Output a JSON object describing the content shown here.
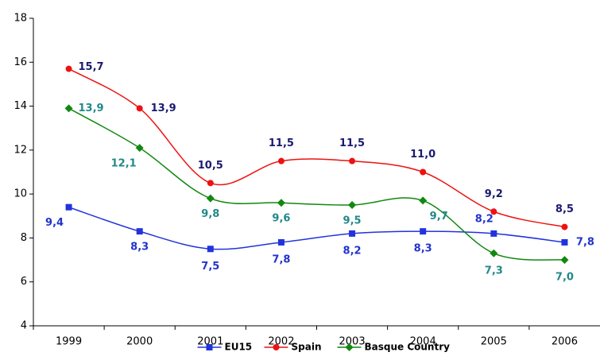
{
  "chart_data": {
    "type": "line",
    "categories": [
      "1999",
      "2000",
      "2001",
      "2002",
      "2003",
      "2004",
      "2005",
      "2006"
    ],
    "ylim": [
      4,
      18
    ],
    "yticks": [
      4,
      6,
      8,
      10,
      12,
      14,
      16,
      18
    ],
    "series": [
      {
        "name": "EU15",
        "color": "#2233dd",
        "label_color": "#2233cc",
        "marker": "square",
        "values": [
          9.4,
          8.3,
          7.5,
          7.8,
          8.2,
          8.3,
          8.2,
          7.8
        ],
        "value_labels": [
          "9,4",
          "8,3",
          "7,5",
          "7,8",
          "8,2",
          "8,3",
          "8,2",
          "7,8"
        ]
      },
      {
        "name": "Spain",
        "color": "#ee1111",
        "label_color": "#1a1a70",
        "marker": "circle",
        "values": [
          15.7,
          13.9,
          10.5,
          11.5,
          11.5,
          11.0,
          9.2,
          8.5
        ],
        "value_labels": [
          "15,7",
          "13,9",
          "10,5",
          "11,5",
          "11,5",
          "11,0",
          "9,2",
          "8,5"
        ]
      },
      {
        "name": "Basque Country",
        "color": "#118811",
        "label_color": "#228888",
        "marker": "diamond",
        "values": [
          13.9,
          12.1,
          9.8,
          9.6,
          9.5,
          9.7,
          7.3,
          7.0
        ],
        "value_labels": [
          "13,9",
          "12,1",
          "9,8",
          "9,6",
          "9,5",
          "9,7",
          "7,3",
          "7,0"
        ]
      }
    ]
  }
}
